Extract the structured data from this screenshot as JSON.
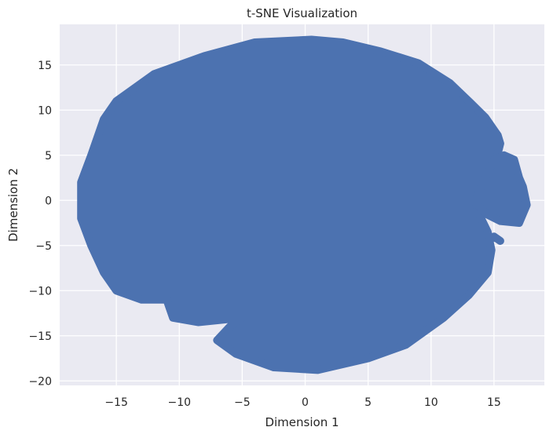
{
  "chart_data": {
    "type": "scatter",
    "title": "t-SNE Visualization",
    "xlabel": "Dimension 1",
    "ylabel": "Dimension 2",
    "xlim": [
      -19.5,
      19.0
    ],
    "ylim": [
      -20.5,
      19.5
    ],
    "xticks": [
      -15,
      -10,
      -5,
      0,
      5,
      10,
      15
    ],
    "yticks": [
      -20,
      -15,
      -10,
      -5,
      0,
      5,
      10,
      15
    ],
    "xtick_labels": [
      "−15",
      "−10",
      "−5",
      "0",
      "5",
      "10",
      "15"
    ],
    "ytick_labels": [
      "−20",
      "−15",
      "−10",
      "−5",
      "0",
      "5",
      "10",
      "15"
    ],
    "grid": true,
    "style": "seaborn-darkgrid",
    "colors": {
      "background": "#eaeaf2",
      "grid": "#ffffff",
      "point": "#4c72b0",
      "text": "#262626"
    },
    "series": [
      {
        "regions": [
          {
            "region": "main cluster (outline)",
            "points": [
              [
                0.5,
                17.8
              ],
              [
                3.0,
                17.5
              ],
              [
                6.0,
                16.5
              ],
              [
                9.0,
                15.2
              ],
              [
                11.5,
                13.0
              ],
              [
                13.0,
                11.0
              ],
              [
                14.3,
                9.2
              ],
              [
                15.3,
                7.2
              ],
              [
                15.5,
                6.3
              ],
              [
                15.0,
                3.5
              ],
              [
                14.0,
                1.5
              ],
              [
                13.5,
                0.0
              ],
              [
                13.8,
                -1.5
              ],
              [
                14.5,
                -3.5
              ],
              [
                14.8,
                -5.5
              ],
              [
                14.5,
                -8.0
              ],
              [
                13.0,
                -10.5
              ],
              [
                11.0,
                -13.0
              ],
              [
                8.0,
                -16.0
              ],
              [
                5.0,
                -17.5
              ],
              [
                1.0,
                -18.8
              ],
              [
                -2.5,
                -18.5
              ],
              [
                -5.5,
                -17.0
              ],
              [
                -7.0,
                -15.5
              ],
              [
                -6.0,
                -14.0
              ],
              [
                -5.0,
                -13.0
              ],
              [
                -8.5,
                -13.5
              ],
              [
                -10.5,
                -13.0
              ],
              [
                -11.0,
                -11.0
              ],
              [
                -13.0,
                -11.0
              ],
              [
                -15.0,
                -10.0
              ],
              [
                -16.0,
                -8.0
              ],
              [
                -17.0,
                -5.0
              ],
              [
                -17.8,
                -2.0
              ],
              [
                -17.8,
                2.0
              ],
              [
                -17.0,
                5.0
              ],
              [
                -16.0,
                9.0
              ],
              [
                -15.0,
                11.0
              ],
              [
                -12.0,
                14.0
              ],
              [
                -8.0,
                16.0
              ],
              [
                -4.0,
                17.5
              ]
            ]
          },
          {
            "region": "right cluster (outline)",
            "points": [
              [
                15.8,
                5.0
              ],
              [
                16.6,
                4.5
              ],
              [
                17.0,
                2.5
              ],
              [
                17.3,
                1.5
              ],
              [
                17.6,
                -0.5
              ],
              [
                17.0,
                -2.5
              ],
              [
                15.5,
                -2.3
              ],
              [
                14.5,
                -1.6
              ],
              [
                13.7,
                -0.5
              ],
              [
                13.8,
                1.0
              ],
              [
                14.5,
                3.0
              ],
              [
                15.0,
                4.5
              ]
            ]
          },
          {
            "region": "small islet",
            "points": [
              [
                15.0,
                -4.0
              ],
              [
                15.5,
                -4.5
              ],
              [
                15.2,
                -4.2
              ],
              [
                14.8,
                -4.1
              ]
            ]
          }
        ]
      }
    ]
  }
}
